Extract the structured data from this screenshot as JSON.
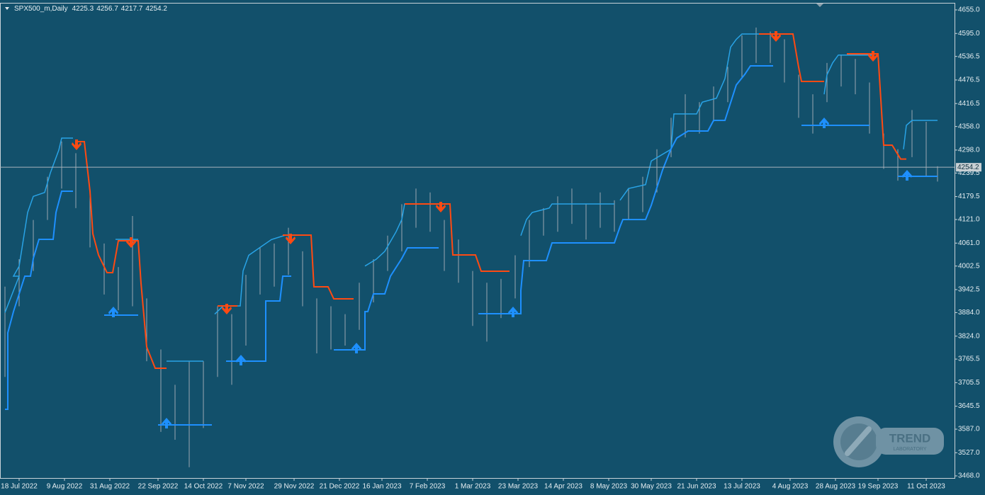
{
  "chart_data": {
    "type": "ohlc",
    "symbol": "SPX500_m,Daily",
    "ohlc": [
      4225.3,
      4256.7,
      4217.7,
      4254.2
    ],
    "last_price": 4254.2,
    "xlim": [
      -1.75,
      335
    ],
    "ylim": [
      3462.6,
      4671.2
    ],
    "yticks": [
      {
        "value": 4655,
        "label": "4655.0"
      },
      {
        "value": 4595,
        "label": "4595.0"
      },
      4536.5,
      4476.5,
      4416.5,
      {
        "value": 4358,
        "label": "4358.0"
      },
      {
        "value": 4298,
        "label": "4298.0"
      },
      4239.5,
      4179.5,
      {
        "value": 4121,
        "label": "4121.0"
      },
      {
        "value": 4061,
        "label": "4061.0"
      },
      4002.5,
      3942.5,
      {
        "value": 3884,
        "label": "3884.0"
      },
      {
        "value": 3824,
        "label": "3824.0"
      },
      3765.5,
      3705.5,
      3645.5,
      {
        "value": 3587,
        "label": "3587.0"
      },
      {
        "value": 3527,
        "label": "3527.0"
      },
      {
        "value": 3468,
        "label": "3468.0"
      }
    ],
    "xticks": [
      {
        "value": 5,
        "label": "18 Jul 2022"
      },
      {
        "value": 21,
        "label": "9 Aug 2022"
      },
      {
        "value": 37,
        "label": "31 Aug 2022"
      },
      {
        "value": 54,
        "label": "22 Sep 2022"
      },
      {
        "value": 70,
        "label": "14 Oct 2022"
      },
      {
        "value": 85,
        "label": "7 Nov 2022"
      },
      {
        "value": 102,
        "label": "29 Nov 2022"
      },
      {
        "value": 118,
        "label": "21 Dec 2022"
      },
      {
        "value": 133,
        "label": "16 Jan 2023"
      },
      {
        "value": 149,
        "label": "7 Feb 2023"
      },
      {
        "value": 165,
        "label": "1 Mar 2023"
      },
      {
        "value": 181,
        "label": "23 Mar 2023"
      },
      {
        "value": 197,
        "label": "14 Apr 2023"
      },
      {
        "value": 213,
        "label": "8 May 2023"
      },
      {
        "value": 228,
        "label": "30 May 2023"
      },
      {
        "value": 244,
        "label": "21 Jun 2023"
      },
      {
        "value": 260,
        "label": "13 Jul 2023"
      },
      {
        "value": 277,
        "label": "4 Aug 2023"
      },
      {
        "value": 293,
        "label": "28 Aug 2023"
      },
      {
        "value": 308,
        "label": "19 Sep 2023"
      },
      {
        "value": 325,
        "label": "11 Oct 2023"
      }
    ],
    "bar_color": "#9aa6b0",
    "x": [
      0,
      5,
      10,
      15,
      20,
      25,
      30,
      35,
      40,
      45,
      50,
      55,
      60,
      65,
      70,
      75,
      80,
      85,
      90,
      95,
      100,
      105,
      110,
      115,
      120,
      125,
      130,
      135,
      140,
      145,
      150,
      155,
      160,
      165,
      170,
      175,
      180,
      185,
      190,
      195,
      200,
      205,
      210,
      215,
      220,
      225,
      230,
      235,
      240,
      245,
      250,
      255,
      260,
      265,
      270,
      275,
      280,
      285,
      290,
      295,
      300,
      305,
      310,
      315,
      320,
      325,
      329
    ],
    "high": [
      3950,
      4020,
      4120,
      4230,
      4320,
      4290,
      4200,
      4060,
      4000,
      4130,
      3920,
      3790,
      3700,
      3760,
      3760,
      3900,
      3880,
      3980,
      4050,
      4060,
      4100,
      4040,
      3920,
      3900,
      3880,
      3960,
      4020,
      4080,
      4160,
      4200,
      4190,
      4120,
      4070,
      3990,
      3960,
      3970,
      4030,
      4120,
      4150,
      4180,
      4200,
      4160,
      4190,
      4170,
      4200,
      4230,
      4300,
      4380,
      4440,
      4420,
      4460,
      4510,
      4590,
      4610,
      4600,
      4580,
      4490,
      4440,
      4520,
      4540,
      4530,
      4470,
      4340,
      4300,
      4400,
      4370,
      4256.7
    ],
    "low": [
      3720,
      3900,
      3990,
      4120,
      4200,
      4150,
      4050,
      3930,
      3890,
      3900,
      3760,
      3580,
      3560,
      3490,
      3590,
      3720,
      3700,
      3800,
      3930,
      3950,
      3980,
      3900,
      3780,
      3790,
      3800,
      3840,
      3910,
      3990,
      4040,
      4100,
      4090,
      3990,
      3960,
      3850,
      3810,
      3870,
      3920,
      4000,
      4080,
      4090,
      4110,
      4070,
      4100,
      4090,
      4120,
      4140,
      4190,
      4280,
      4330,
      4340,
      4370,
      4420,
      4480,
      4520,
      4520,
      4470,
      4380,
      4340,
      4420,
      4460,
      4440,
      4340,
      4250,
      4220,
      4280,
      4230,
      4217.7
    ],
    "series": [
      {
        "color": "#29a3e6",
        "width": 1.5,
        "x": [
          0,
          5,
          3,
          5,
          8,
          10,
          14,
          16,
          19,
          20,
          24,
          null,
          39,
          47,
          null,
          57,
          70,
          null,
          74,
          77,
          83,
          84,
          86,
          90,
          94,
          99,
          null,
          127,
          131,
          134,
          138,
          140,
          141,
          153,
          null,
          182,
          184,
          186,
          192,
          193,
          215,
          null,
          217,
          220,
          226,
          228,
          235,
          236,
          244,
          246,
          251,
          254,
          256,
          258,
          260,
          268,
          null,
          289,
          290,
          292,
          294,
          306,
          null,
          317,
          318,
          320,
          329
        ],
        "values": [
          3884,
          3976.7,
          3976.7,
          4002,
          4139,
          4180,
          4190,
          4239.5,
          4298,
          4328.5,
          4328.5,
          null,
          4070.5,
          4070.5,
          null,
          3760.2,
          3760.2,
          null,
          3880,
          3900.9,
          3900.9,
          3990,
          4030,
          4050,
          4070,
          4081.3,
          null,
          4002.5,
          4020,
          4040,
          4090,
          4121,
          4160.7,
          4160.7,
          null,
          4080,
          4121,
          4139.1,
          4150,
          4160.7,
          4160.7,
          null,
          4170,
          4200,
          4210,
          4270,
          4300,
          4390,
          4390,
          4420,
          4430,
          4480,
          4560,
          4580,
          4593.7,
          4593.7,
          null,
          4440,
          4490,
          4520,
          4540,
          4540,
          null,
          4300,
          4361,
          4373.6,
          4373.6
        ]
      },
      {
        "color": "#1e90ff",
        "width": 2,
        "x": [
          0,
          1,
          1,
          3,
          5,
          7,
          9,
          10,
          12,
          17,
          18,
          20,
          24,
          null,
          35,
          47,
          null,
          54,
          73,
          null,
          78,
          92,
          92,
          97,
          98,
          101,
          null,
          116,
          127,
          127,
          128,
          130,
          134,
          136,
          140,
          142,
          153,
          null,
          167,
          182,
          182,
          183,
          191,
          193,
          215,
          217,
          218,
          226,
          228,
          232,
          235,
          237,
          241,
          248,
          250,
          254,
          258,
          261,
          263,
          271,
          null,
          281,
          305,
          null,
          315,
          329
        ],
        "values": [
          3637.5,
          3637.5,
          3832.4,
          3886.5,
          3931.6,
          3976.7,
          3976.7,
          4021.8,
          4070.5,
          4070.5,
          4139.1,
          4193.2,
          4193.2,
          null,
          3877.5,
          3877.5,
          null,
          3597.9,
          3597.9,
          null,
          3760.2,
          3760.2,
          3913.6,
          3913.6,
          3976.7,
          3976.7,
          null,
          3789.1,
          3789.1,
          3886.5,
          3886.5,
          3931.6,
          3931.6,
          3976.7,
          4021.8,
          4048.9,
          4048.9,
          null,
          3881.1,
          3881.1,
          3940.6,
          4016.4,
          4016.4,
          4061.5,
          4061.5,
          4103,
          4121,
          4121,
          4157.1,
          4247.3,
          4301.4,
          4328.5,
          4346.5,
          4346.5,
          4373.6,
          4373.6,
          4463.8,
          4490.8,
          4512.5,
          4512.5,
          null,
          4360.9,
          4360.9,
          null,
          4231.1,
          4231.1
        ]
      },
      {
        "color": "#ff4a12",
        "width": 2,
        "x": [
          25,
          28,
          30,
          31,
          33,
          36,
          38,
          40,
          47,
          48,
          50,
          53,
          57,
          null,
          75,
          82,
          null,
          98,
          108,
          109,
          114,
          116,
          123,
          null,
          141,
          157,
          158,
          166,
          168,
          178,
          null,
          266,
          278,
          280,
          281,
          289,
          null,
          297,
          308,
          310,
          313,
          316,
          318
        ],
        "values": [
          4319.5,
          4319.5,
          4193.2,
          4084.9,
          4030.8,
          3985.7,
          3985.7,
          4066.9,
          4066.9,
          3958.7,
          3796.3,
          3742.2,
          3742.2,
          null,
          3900.9,
          3900.9,
          null,
          4081.3,
          4081.3,
          3949.6,
          3949.6,
          3919,
          3919,
          null,
          4160.7,
          4160.7,
          4030.8,
          4030.8,
          3989.3,
          3989.3,
          null,
          4593.7,
          4593.7,
          4508.9,
          4472.8,
          4472.8,
          null,
          4543.2,
          4543.2,
          4310.4,
          4310.4,
          4275,
          4275
        ]
      }
    ],
    "arrows_down": {
      "color": "#ff4a12",
      "x": [
        25.25,
        44.5,
        78.25,
        100.75,
        153.75,
        272,
        306.25
      ],
      "values": [
        4310.4,
        4061.5,
        3891.9,
        4070.5,
        4151.7,
        4586.4,
        4536
      ]
    },
    "arrows_up": {
      "color": "#1e90ff",
      "x": [
        38.25,
        57,
        83.25,
        124,
        179.25,
        289,
        318.25
      ],
      "values": [
        3886.5,
        3603.3,
        3763.8,
        3794.5,
        3886.5,
        4368.2,
        4234.7
      ]
    }
  },
  "logo": {
    "title": "TREND",
    "subtitle": "LABORATORY"
  }
}
